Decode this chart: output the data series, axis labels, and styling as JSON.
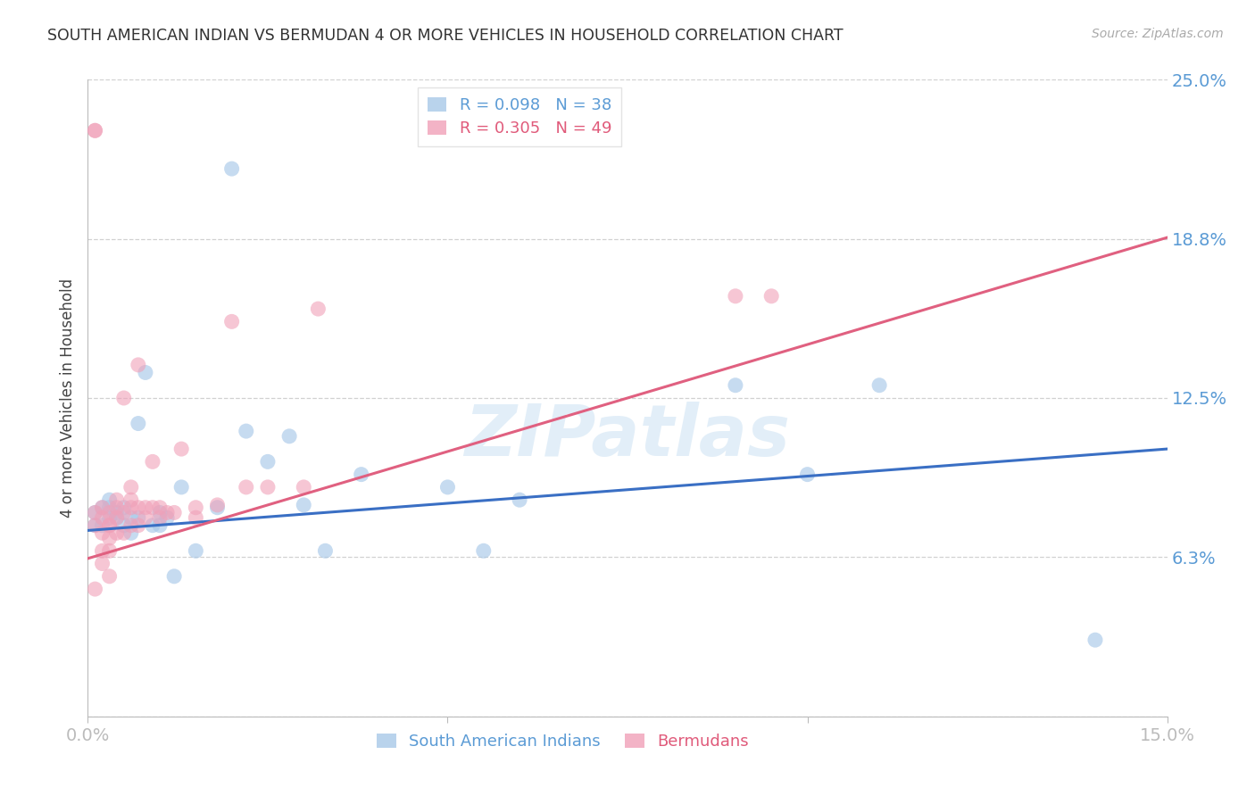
{
  "title": "SOUTH AMERICAN INDIAN VS BERMUDAN 4 OR MORE VEHICLES IN HOUSEHOLD CORRELATION CHART",
  "source": "Source: ZipAtlas.com",
  "ylabel": "4 or more Vehicles in Household",
  "xlim": [
    0.0,
    0.15
  ],
  "ylim": [
    0.0,
    0.25
  ],
  "xticks": [
    0.0,
    0.05,
    0.1,
    0.15
  ],
  "xticklabels": [
    "0.0%",
    "",
    "",
    "15.0%"
  ],
  "yticks": [
    0.0,
    0.0625,
    0.125,
    0.1875,
    0.25
  ],
  "yticklabels": [
    "",
    "6.3%",
    "12.5%",
    "18.8%",
    "25.0%"
  ],
  "blue_R": 0.098,
  "blue_N": 38,
  "pink_R": 0.305,
  "pink_N": 49,
  "blue_color": "#a8c8e8",
  "pink_color": "#f0a0b8",
  "blue_line_color": "#3a6fc4",
  "pink_line_color": "#e06080",
  "watermark": "ZIPatlas",
  "legend_label_blue": "South American Indians",
  "legend_label_pink": "Bermudans",
  "blue_points_x": [
    0.001,
    0.001,
    0.002,
    0.002,
    0.003,
    0.003,
    0.003,
    0.004,
    0.004,
    0.005,
    0.005,
    0.006,
    0.006,
    0.007,
    0.007,
    0.008,
    0.009,
    0.01,
    0.01,
    0.011,
    0.012,
    0.013,
    0.015,
    0.018,
    0.02,
    0.022,
    0.025,
    0.028,
    0.03,
    0.033,
    0.038,
    0.05,
    0.055,
    0.06,
    0.09,
    0.1,
    0.11,
    0.14
  ],
  "blue_points_y": [
    0.075,
    0.08,
    0.082,
    0.075,
    0.078,
    0.082,
    0.085,
    0.078,
    0.08,
    0.075,
    0.082,
    0.072,
    0.078,
    0.115,
    0.078,
    0.135,
    0.075,
    0.08,
    0.075,
    0.078,
    0.055,
    0.09,
    0.065,
    0.082,
    0.215,
    0.112,
    0.1,
    0.11,
    0.083,
    0.065,
    0.095,
    0.09,
    0.065,
    0.085,
    0.13,
    0.095,
    0.13,
    0.03
  ],
  "pink_points_x": [
    0.001,
    0.001,
    0.001,
    0.001,
    0.001,
    0.002,
    0.002,
    0.002,
    0.002,
    0.002,
    0.003,
    0.003,
    0.003,
    0.003,
    0.003,
    0.003,
    0.004,
    0.004,
    0.004,
    0.004,
    0.005,
    0.005,
    0.005,
    0.006,
    0.006,
    0.006,
    0.006,
    0.007,
    0.007,
    0.007,
    0.008,
    0.008,
    0.009,
    0.009,
    0.01,
    0.01,
    0.011,
    0.012,
    0.013,
    0.015,
    0.015,
    0.018,
    0.02,
    0.022,
    0.025,
    0.03,
    0.032,
    0.09,
    0.095
  ],
  "pink_points_y": [
    0.23,
    0.23,
    0.075,
    0.08,
    0.05,
    0.082,
    0.078,
    0.072,
    0.065,
    0.06,
    0.08,
    0.075,
    0.075,
    0.07,
    0.065,
    0.055,
    0.085,
    0.082,
    0.078,
    0.072,
    0.125,
    0.08,
    0.072,
    0.09,
    0.085,
    0.082,
    0.075,
    0.138,
    0.082,
    0.075,
    0.082,
    0.078,
    0.1,
    0.082,
    0.082,
    0.078,
    0.08,
    0.08,
    0.105,
    0.082,
    0.078,
    0.083,
    0.155,
    0.09,
    0.09,
    0.09,
    0.16,
    0.165,
    0.165
  ]
}
